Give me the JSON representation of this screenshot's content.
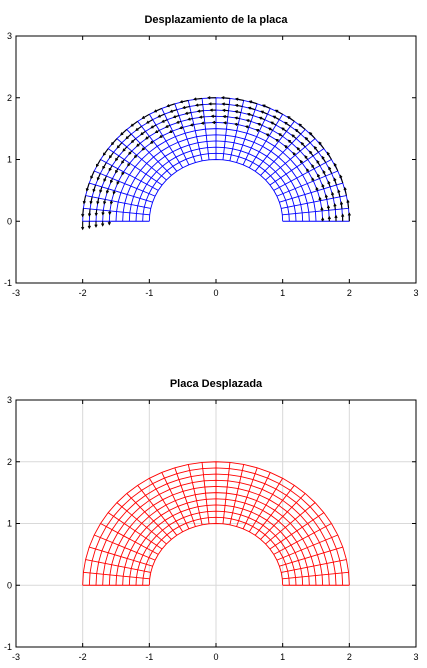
{
  "chart_data": [
    {
      "type": "mesh-quiver",
      "title": "Desplazamiento de la placa",
      "xlim": [
        -3,
        3
      ],
      "ylim": [
        -1,
        3
      ],
      "xticks": [
        "-3",
        "-2",
        "-1",
        "0",
        "1",
        "2",
        "3"
      ],
      "yticks": [
        "-1",
        "0",
        "1",
        "2",
        "3"
      ],
      "grid": false,
      "mesh": {
        "shape": "half-annulus",
        "inner_radius": 1,
        "outer_radius": 2,
        "radial_divisions": 10,
        "angular_divisions": 30,
        "color": "#0000ff"
      },
      "displacement_arrows": {
        "color": "#000000",
        "region": "outer rows of the mesh"
      }
    },
    {
      "type": "mesh",
      "title": "Placa Desplazada",
      "xlim": [
        -3,
        3
      ],
      "ylim": [
        -1,
        3
      ],
      "xticks": [
        "-3",
        "-2",
        "-1",
        "0",
        "1",
        "2",
        "3"
      ],
      "yticks": [
        "-1",
        "0",
        "1",
        "2",
        "3"
      ],
      "grid": true,
      "mesh": {
        "shape": "half-annulus",
        "inner_radius": 1,
        "outer_radius": 2,
        "radial_divisions": 10,
        "angular_divisions": 30,
        "color": "#ff0000"
      }
    }
  ]
}
